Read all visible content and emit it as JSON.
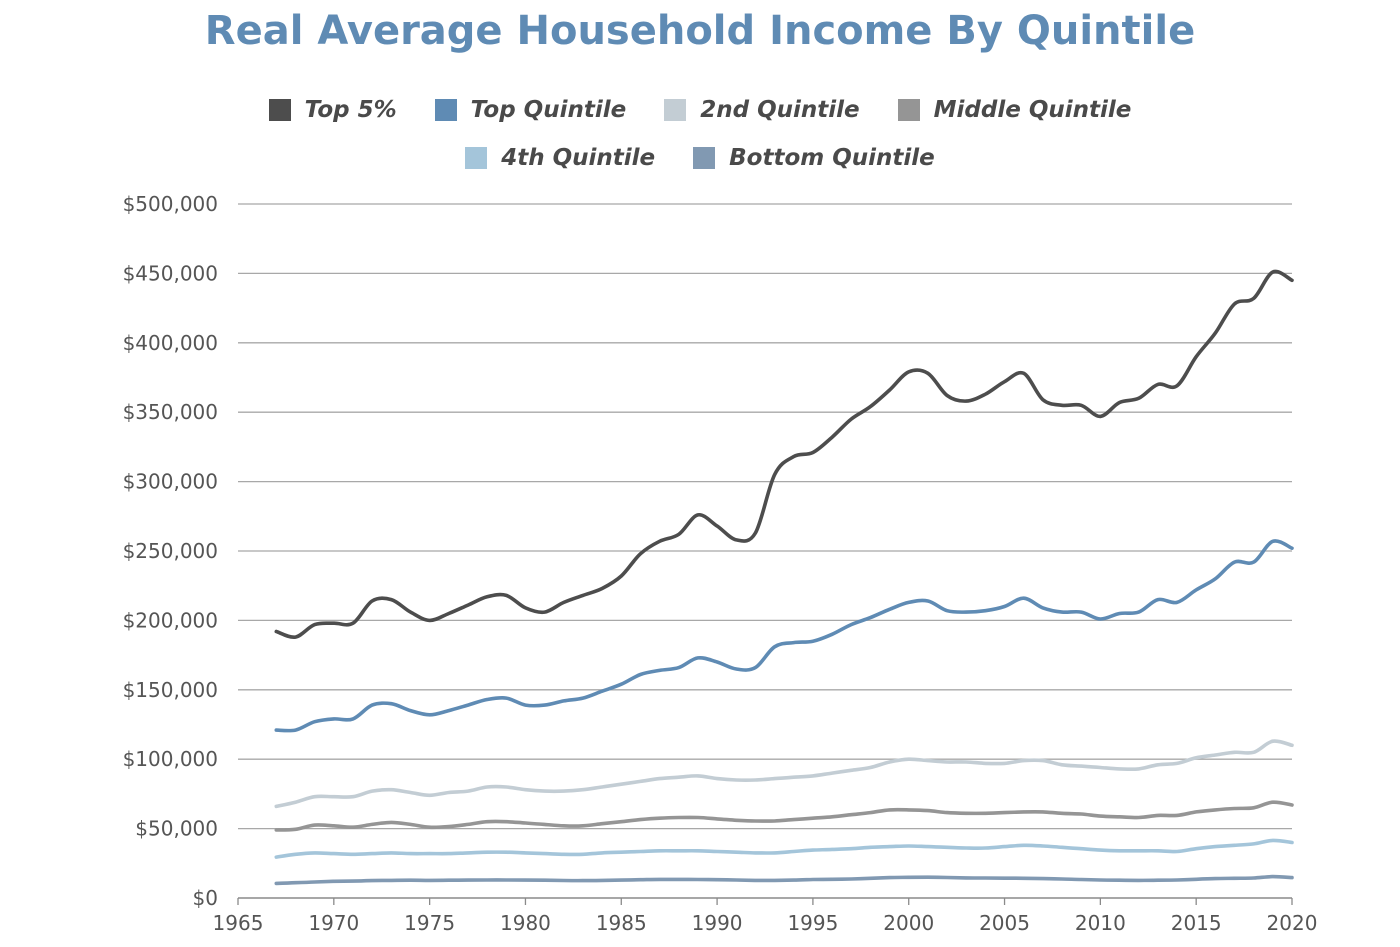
{
  "chart_data": {
    "type": "line",
    "title": "Real Average Household Income By Quintile",
    "xlabel": "",
    "ylabel": "",
    "xlim": [
      1965,
      2020
    ],
    "ylim": [
      0,
      500000
    ],
    "grid": "horizontal",
    "legend_position": "top-center",
    "x_ticks": [
      1965,
      1970,
      1975,
      1980,
      1985,
      1990,
      1995,
      2000,
      2005,
      2010,
      2015,
      2020
    ],
    "x_tick_labels": [
      "1965",
      "1970",
      "1975",
      "1980",
      "1985",
      "1990",
      "1995",
      "2000",
      "2005",
      "2010",
      "2015",
      "2020"
    ],
    "y_ticks": [
      0,
      50000,
      100000,
      150000,
      200000,
      250000,
      300000,
      350000,
      400000,
      450000,
      500000
    ],
    "y_tick_labels": [
      "$0",
      "$50,000",
      "$100,000",
      "$150,000",
      "$200,000",
      "$250,000",
      "$300,000",
      "$350,000",
      "$400,000",
      "$450,000",
      "$500,000"
    ],
    "x": [
      1967,
      1968,
      1969,
      1970,
      1971,
      1972,
      1973,
      1974,
      1975,
      1976,
      1977,
      1978,
      1979,
      1980,
      1981,
      1982,
      1983,
      1984,
      1985,
      1986,
      1987,
      1988,
      1989,
      1990,
      1991,
      1992,
      1993,
      1994,
      1995,
      1996,
      1997,
      1998,
      1999,
      2000,
      2001,
      2002,
      2003,
      2004,
      2005,
      2006,
      2007,
      2008,
      2009,
      2010,
      2011,
      2012,
      2013,
      2014,
      2015,
      2016,
      2017,
      2018,
      2019,
      2020
    ],
    "series": [
      {
        "name": "Top 5%",
        "color": "#4d4d4d",
        "values": [
          192000,
          188000,
          197000,
          198000,
          198000,
          214000,
          215000,
          206000,
          200000,
          205000,
          211000,
          217000,
          218000,
          209000,
          206000,
          213000,
          218000,
          223000,
          232000,
          248000,
          257000,
          262000,
          276000,
          268000,
          258000,
          263000,
          305000,
          318000,
          321000,
          332000,
          345000,
          354000,
          366000,
          379000,
          378000,
          362000,
          358000,
          363000,
          372000,
          378000,
          359000,
          355000,
          355000,
          347000,
          357000,
          360000,
          370000,
          369000,
          390000,
          407000,
          428000,
          432000,
          451000,
          445000
        ]
      },
      {
        "name": "Top Quintile",
        "color": "#5f8bb4",
        "values": [
          121000,
          121000,
          127000,
          129000,
          129000,
          139000,
          140000,
          135000,
          132000,
          135000,
          139000,
          143000,
          144000,
          139000,
          139000,
          142000,
          144000,
          149000,
          154000,
          161000,
          164000,
          166000,
          173000,
          170000,
          165000,
          166000,
          181000,
          184000,
          185000,
          190000,
          197000,
          202000,
          208000,
          213000,
          214000,
          207000,
          206000,
          207000,
          210000,
          216000,
          209000,
          206000,
          206000,
          201000,
          205000,
          206000,
          215000,
          213000,
          222000,
          230000,
          242000,
          242000,
          257000,
          252000
        ]
      },
      {
        "name": "2nd Quintile",
        "color": "#c3cdd4",
        "values": [
          66000,
          69000,
          73000,
          73000,
          73000,
          77000,
          78000,
          76000,
          74000,
          76000,
          77000,
          80000,
          80000,
          78000,
          77000,
          77000,
          78000,
          80000,
          82000,
          84000,
          86000,
          87000,
          88000,
          86000,
          85000,
          85000,
          86000,
          87000,
          88000,
          90000,
          92000,
          94000,
          98000,
          100000,
          99000,
          98000,
          98000,
          97000,
          97000,
          99000,
          99000,
          96000,
          95000,
          94000,
          93000,
          93000,
          96000,
          97000,
          101000,
          103000,
          105000,
          105000,
          113000,
          110000
        ]
      },
      {
        "name": "Middle Quintile",
        "color": "#959595",
        "values": [
          49000,
          49500,
          52500,
          52000,
          51000,
          53000,
          54500,
          53000,
          51000,
          51500,
          53000,
          55000,
          55000,
          54000,
          53000,
          52000,
          52000,
          53500,
          55000,
          56500,
          57500,
          58000,
          58000,
          57000,
          56000,
          55500,
          55500,
          56500,
          57500,
          58500,
          60000,
          61500,
          63500,
          63500,
          63000,
          61500,
          61000,
          61000,
          61500,
          62000,
          62000,
          61000,
          60500,
          59000,
          58500,
          58000,
          59500,
          59500,
          62000,
          63500,
          64500,
          65000,
          69000,
          67000
        ]
      },
      {
        "name": "4th Quintile",
        "color": "#a4c5da",
        "values": [
          29500,
          31500,
          32500,
          32000,
          31500,
          32000,
          32500,
          32000,
          32000,
          32000,
          32500,
          33000,
          33000,
          32500,
          32000,
          31500,
          31500,
          32500,
          33000,
          33500,
          34000,
          34000,
          34000,
          33500,
          33000,
          32500,
          32500,
          33500,
          34500,
          35000,
          35500,
          36500,
          37000,
          37500,
          37000,
          36500,
          36000,
          36000,
          37000,
          38000,
          37500,
          36500,
          35500,
          34500,
          34000,
          34000,
          34000,
          33500,
          35500,
          37000,
          38000,
          39000,
          41500,
          40000
        ]
      },
      {
        "name": "Bottom Quintile",
        "color": "#8199b2",
        "values": [
          10500,
          11000,
          11500,
          12000,
          12200,
          12500,
          12700,
          12800,
          12700,
          12800,
          12900,
          13000,
          13000,
          12900,
          12800,
          12600,
          12500,
          12700,
          12900,
          13200,
          13400,
          13400,
          13300,
          13200,
          13000,
          12700,
          12700,
          12900,
          13300,
          13500,
          13700,
          14200,
          14700,
          14900,
          15000,
          14800,
          14500,
          14400,
          14300,
          14200,
          14000,
          13700,
          13300,
          13000,
          12800,
          12700,
          12800,
          13000,
          13500,
          14000,
          14200,
          14400,
          15400,
          14700
        ]
      }
    ]
  }
}
